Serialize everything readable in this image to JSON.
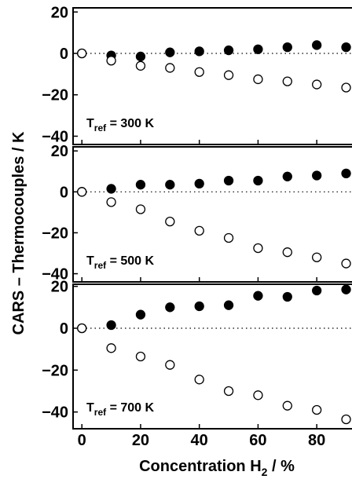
{
  "chart_data": {
    "type": "scatter",
    "xlabel_main": "Concentration H",
    "xlabel_sub": "2",
    "xlabel_unit": " / %",
    "ylabel": "CARS – Thermocouples / K",
    "xlim": [
      -3,
      92
    ],
    "x_ticks": [
      0,
      20,
      40,
      60,
      80
    ],
    "x": [
      0,
      10,
      20,
      30,
      40,
      50,
      60,
      70,
      80,
      90
    ],
    "panels": [
      {
        "label_main": "T",
        "label_sub": "ref",
        "label_value": " = 300 K",
        "ylim": [
          -44,
          22
        ],
        "y_ticks": [
          20,
          0,
          -20,
          -40
        ],
        "series": [
          {
            "marker": "filled",
            "values": [
              0,
              -1,
              -1.5,
              0.5,
              1,
              1.5,
              2,
              3,
              4,
              3
            ]
          },
          {
            "marker": "open",
            "values": [
              0,
              -3.5,
              -6,
              -7,
              -9,
              -10.5,
              -12.5,
              -13.5,
              -15,
              -16.5
            ]
          }
        ]
      },
      {
        "label_main": "T",
        "label_sub": "ref",
        "label_value": " = 500 K",
        "ylim": [
          -44,
          22
        ],
        "y_ticks": [
          20,
          0,
          -20,
          -40
        ],
        "series": [
          {
            "marker": "filled",
            "values": [
              0,
              1.5,
              3.5,
              3.5,
              4,
              5.5,
              5.5,
              7.5,
              8,
              9
            ]
          },
          {
            "marker": "open",
            "values": [
              0,
              -5,
              -8.5,
              -14.5,
              -19,
              -22.5,
              -27.5,
              -29.5,
              -32,
              -35
            ]
          }
        ]
      },
      {
        "label_main": "T",
        "label_sub": "ref",
        "label_value": " = 700 K",
        "ylim": [
          -48,
          21
        ],
        "y_ticks": [
          20,
          0,
          -20,
          -40
        ],
        "series": [
          {
            "marker": "filled",
            "values": [
              0,
              1.5,
              6.5,
              10,
              10.5,
              11,
              15.5,
              15,
              18,
              18.5
            ]
          },
          {
            "marker": "open",
            "values": [
              0,
              -9.5,
              -13.5,
              -17.5,
              -24.5,
              -30,
              -32,
              -37,
              -39,
              -43.5
            ]
          }
        ]
      }
    ]
  }
}
